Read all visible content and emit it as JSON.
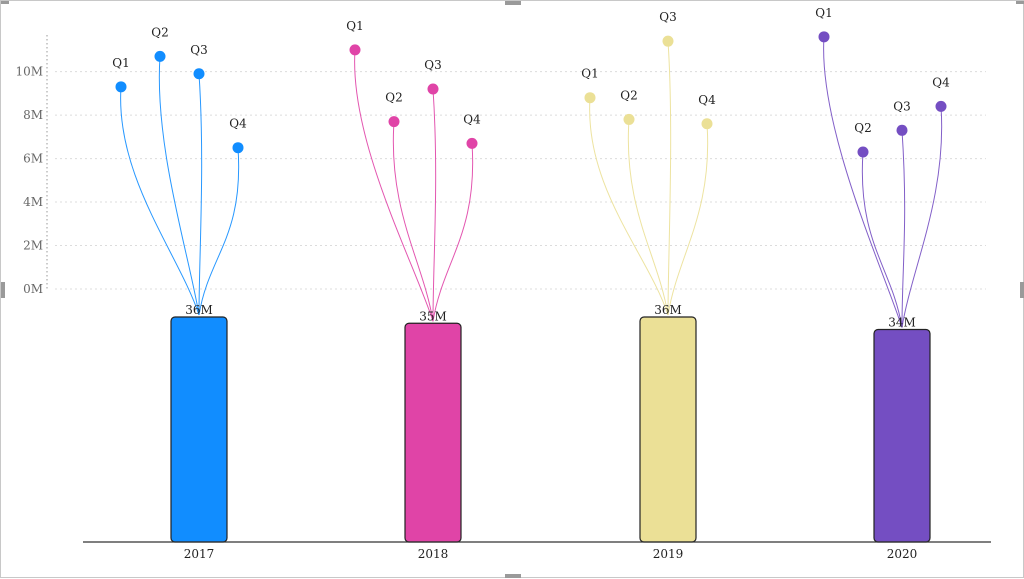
{
  "chart_data": {
    "type": "bar",
    "title": "",
    "xlabel": "",
    "ylabel": "",
    "quarter_axis": {
      "ticks": [
        "0M",
        "2M",
        "4M",
        "6M",
        "8M",
        "10M"
      ],
      "tick_values": [
        0,
        2,
        4,
        6,
        8,
        10
      ],
      "ylim": [
        0,
        11.5
      ],
      "gridlines": true
    },
    "categories": [
      "2017",
      "2018",
      "2019",
      "2020"
    ],
    "totals": {
      "values": [
        36,
        35,
        36,
        34
      ],
      "labels": [
        "36M",
        "35M",
        "36M",
        "34M"
      ]
    },
    "series": [
      {
        "year": "2017",
        "color": "#118DFF",
        "quarters": [
          "Q1",
          "Q2",
          "Q3",
          "Q4"
        ],
        "values": [
          9.3,
          10.7,
          9.9,
          6.5
        ]
      },
      {
        "year": "2018",
        "color": "#E044A7",
        "quarters": [
          "Q1",
          "Q2",
          "Q3",
          "Q4"
        ],
        "values": [
          11.0,
          7.7,
          9.2,
          6.7
        ]
      },
      {
        "year": "2019",
        "color": "#EBE096",
        "quarters": [
          "Q1",
          "Q2",
          "Q3",
          "Q4"
        ],
        "values": [
          8.8,
          7.8,
          11.4,
          7.6
        ]
      },
      {
        "year": "2020",
        "color": "#744EC2",
        "quarters": [
          "Q1",
          "Q2",
          "Q3",
          "Q4"
        ],
        "values": [
          11.6,
          6.3,
          7.3,
          8.4
        ]
      }
    ]
  }
}
